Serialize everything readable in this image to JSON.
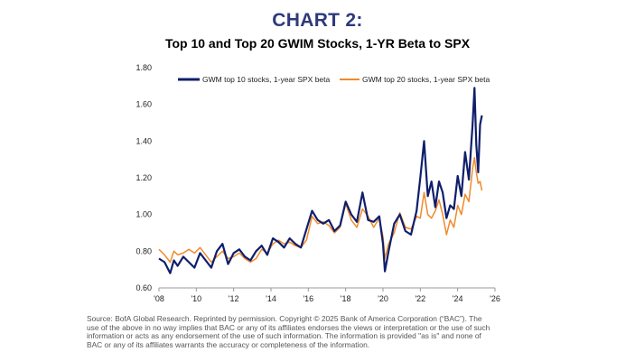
{
  "colors": {
    "title": "#2e3a7a",
    "series1": "#0f1f6b",
    "series2": "#f08a2c",
    "axis": "#999999"
  },
  "header": {
    "title": "CHART 2:",
    "subtitle": "Top 10 and Top 20 GWIM Stocks, 1-YR Beta to SPX"
  },
  "chart_data": {
    "type": "line",
    "title": "Top 10 and Top 20 GWIM Stocks, 1-YR Beta to SPX",
    "xlabel": "",
    "ylabel": "",
    "xlim": [
      2008,
      2026
    ],
    "ylim": [
      0.6,
      1.8
    ],
    "y_ticks": [
      0.6,
      0.8,
      1.0,
      1.2,
      1.4,
      1.6,
      1.8
    ],
    "y_tick_labels": [
      "0.60",
      "0.80",
      "1.00",
      "1.20",
      "1.40",
      "1.60",
      "1.80"
    ],
    "x_ticks": [
      2008,
      2010,
      2012,
      2014,
      2016,
      2018,
      2020,
      2022,
      2024,
      2026
    ],
    "x_tick_labels": [
      "'08",
      "'10",
      "'12",
      "'14",
      "'16",
      "'18",
      "'20",
      "'22",
      "'24",
      "'26"
    ],
    "legend_position": "top",
    "series": [
      {
        "name": "GWM top 10 stocks, 1-year SPX beta",
        "x": [
          2008.0,
          2008.3,
          2008.6,
          2008.8,
          2009.0,
          2009.3,
          2009.6,
          2009.9,
          2010.2,
          2010.5,
          2010.8,
          2011.1,
          2011.4,
          2011.7,
          2012.0,
          2012.3,
          2012.6,
          2012.9,
          2013.2,
          2013.5,
          2013.8,
          2014.1,
          2014.4,
          2014.7,
          2015.0,
          2015.3,
          2015.6,
          2015.9,
          2016.2,
          2016.5,
          2016.8,
          2017.1,
          2017.4,
          2017.7,
          2018.0,
          2018.3,
          2018.6,
          2018.9,
          2019.2,
          2019.5,
          2019.8,
          2020.0,
          2020.1,
          2020.3,
          2020.6,
          2020.9,
          2021.2,
          2021.5,
          2021.8,
          2022.0,
          2022.2,
          2022.4,
          2022.6,
          2022.8,
          2023.0,
          2023.2,
          2023.4,
          2023.6,
          2023.8,
          2024.0,
          2024.2,
          2024.4,
          2024.6,
          2024.8,
          2024.9,
          2025.0,
          2025.1,
          2025.2,
          2025.3
        ],
        "values": [
          0.76,
          0.74,
          0.68,
          0.75,
          0.72,
          0.77,
          0.74,
          0.71,
          0.79,
          0.75,
          0.71,
          0.8,
          0.84,
          0.73,
          0.79,
          0.81,
          0.77,
          0.75,
          0.8,
          0.83,
          0.78,
          0.87,
          0.85,
          0.82,
          0.87,
          0.84,
          0.82,
          0.92,
          1.02,
          0.97,
          0.95,
          0.97,
          0.91,
          0.94,
          1.07,
          1.0,
          0.96,
          1.12,
          0.97,
          0.96,
          0.99,
          0.84,
          0.69,
          0.8,
          0.95,
          1.0,
          0.91,
          0.89,
          1.02,
          1.2,
          1.4,
          1.1,
          1.18,
          1.04,
          1.18,
          1.12,
          0.98,
          1.05,
          1.03,
          1.21,
          1.1,
          1.34,
          1.19,
          1.49,
          1.69,
          1.38,
          1.23,
          1.49,
          1.54
        ]
      },
      {
        "name": "GWM top 20 stocks, 1-year SPX beta",
        "x": [
          2008.0,
          2008.3,
          2008.6,
          2008.8,
          2009.0,
          2009.3,
          2009.6,
          2009.9,
          2010.2,
          2010.5,
          2010.8,
          2011.1,
          2011.4,
          2011.7,
          2012.0,
          2012.3,
          2012.6,
          2012.9,
          2013.2,
          2013.5,
          2013.8,
          2014.1,
          2014.4,
          2014.7,
          2015.0,
          2015.3,
          2015.6,
          2015.9,
          2016.2,
          2016.5,
          2016.8,
          2017.1,
          2017.4,
          2017.7,
          2018.0,
          2018.3,
          2018.6,
          2018.9,
          2019.2,
          2019.5,
          2019.8,
          2020.0,
          2020.1,
          2020.3,
          2020.6,
          2020.9,
          2021.2,
          2021.5,
          2021.8,
          2022.0,
          2022.2,
          2022.4,
          2022.6,
          2022.8,
          2023.0,
          2023.2,
          2023.4,
          2023.6,
          2023.8,
          2024.0,
          2024.2,
          2024.4,
          2024.6,
          2024.8,
          2024.9,
          2025.0,
          2025.1,
          2025.2,
          2025.3
        ],
        "values": [
          0.81,
          0.78,
          0.74,
          0.8,
          0.78,
          0.79,
          0.81,
          0.79,
          0.82,
          0.78,
          0.74,
          0.77,
          0.8,
          0.76,
          0.77,
          0.79,
          0.76,
          0.74,
          0.76,
          0.81,
          0.79,
          0.84,
          0.86,
          0.84,
          0.85,
          0.83,
          0.82,
          0.86,
          0.99,
          0.95,
          0.96,
          0.94,
          0.9,
          0.93,
          1.06,
          0.97,
          0.93,
          1.03,
          0.99,
          0.93,
          0.98,
          0.88,
          0.76,
          0.84,
          0.9,
          1.01,
          0.93,
          0.92,
          0.99,
          0.98,
          1.12,
          1.0,
          0.98,
          1.02,
          1.08,
          1.0,
          0.89,
          0.97,
          0.93,
          1.05,
          1.0,
          1.11,
          1.07,
          1.25,
          1.31,
          1.23,
          1.17,
          1.18,
          1.13
        ]
      }
    ]
  },
  "footer": {
    "source_lines": [
      "Source: BofA Global Research. Reprinted by permission. Copyright © 2025 Bank of America Corporation (“BAC”). The",
      "use of the above in no way implies that BAC or any of its affiliates endorses the views or interpretation or the use of such",
      "information or acts as any endorsement of the use of such information. The information is provided \"as is\" and none of",
      "BAC or any of its affiliates warrants the accuracy or completeness of the information."
    ]
  }
}
